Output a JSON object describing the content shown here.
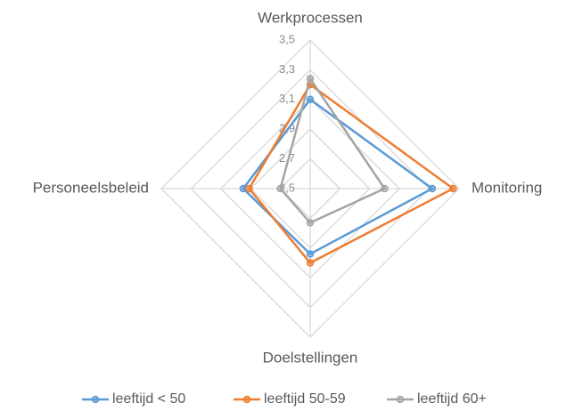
{
  "chart_data": {
    "type": "radar",
    "categories": [
      "Werkprocessen",
      "Monitoring",
      "Doelstellingen",
      "Personeelsbeleid"
    ],
    "ylim": [
      2.5,
      3.5
    ],
    "yticks": [
      {
        "value": 2.5,
        "label": "2,5"
      },
      {
        "value": 2.7,
        "label": "2,7"
      },
      {
        "value": 2.9,
        "label": "2,9"
      },
      {
        "value": 3.1,
        "label": "3,1"
      },
      {
        "value": 3.3,
        "label": "3,3"
      },
      {
        "value": 3.5,
        "label": "3,5"
      }
    ],
    "grid": true,
    "legend": "bottom",
    "series": [
      {
        "name": "leeftijd < 50",
        "color": "#5b9bd5",
        "values": [
          3.1,
          3.32,
          2.94,
          2.95
        ]
      },
      {
        "name": "leeftijd 50-59",
        "color": "#ed7d31",
        "values": [
          3.2,
          3.46,
          3.0,
          2.91
        ]
      },
      {
        "name": "leeftijd 60+",
        "color": "#a5a5a5",
        "values": [
          3.24,
          3.0,
          2.73,
          2.7
        ]
      }
    ]
  }
}
